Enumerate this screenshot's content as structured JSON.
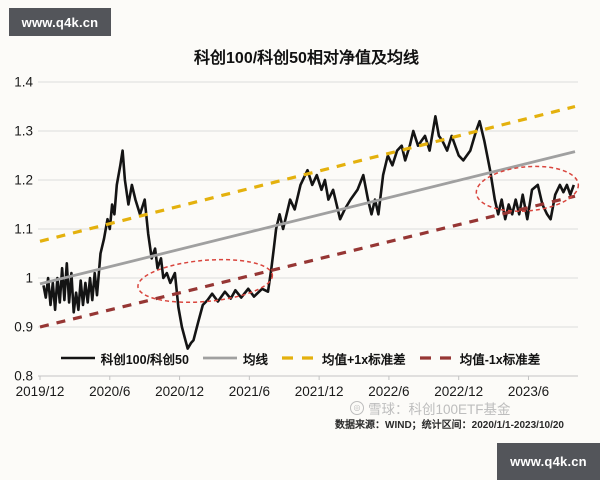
{
  "watermark_top": {
    "text": "www.q4k.cn"
  },
  "watermark_bottom": {
    "text": "www.q4k.cn"
  },
  "overlay_watermark": {
    "logo": "xueqiu-circle-logo",
    "text": "雪球：科创100ETF基金"
  },
  "caption": {
    "text": "数据来源：WIND；统计区间：2020/1/1-2023/10/20"
  },
  "chart_data": {
    "type": "line",
    "title": "科创100/科创50相对净值及均线",
    "xlabel": "",
    "ylabel": "",
    "x_axis": {
      "unit": "months since 2019/12",
      "range": [
        0,
        46
      ],
      "tick_positions": [
        0,
        6,
        12,
        18,
        24,
        30,
        36,
        42
      ],
      "tick_labels": [
        "2019/12",
        "2020/6",
        "2020/12",
        "2021/6",
        "2021/12",
        "2022/6",
        "2022/12",
        "2023/6"
      ]
    },
    "y_axis": {
      "range": [
        0.8,
        1.4
      ],
      "tick_step": 0.1,
      "tick_labels": [
        "0.8",
        "0.9",
        "1",
        "1.1",
        "1.2",
        "1.3",
        "1.4"
      ]
    },
    "grid": "horizontal",
    "legend_position": "bottom-inside",
    "series": [
      {
        "name": "科创100/科创50",
        "color": "#141414",
        "style": "solid",
        "width": 2.6,
        "points": [
          [
            0.3,
            0.985
          ],
          [
            0.5,
            0.96
          ],
          [
            0.7,
            1.0
          ],
          [
            0.9,
            0.945
          ],
          [
            1.1,
            0.99
          ],
          [
            1.3,
            0.935
          ],
          [
            1.5,
            1.0
          ],
          [
            1.7,
            0.95
          ],
          [
            1.9,
            1.02
          ],
          [
            2.1,
            0.955
          ],
          [
            2.3,
            1.03
          ],
          [
            2.5,
            0.95
          ],
          [
            2.7,
            1.01
          ],
          [
            2.9,
            0.93
          ],
          [
            3.1,
            0.97
          ],
          [
            3.3,
            0.935
          ],
          [
            3.5,
            0.995
          ],
          [
            3.7,
            0.945
          ],
          [
            3.9,
            0.99
          ],
          [
            4.1,
            0.95
          ],
          [
            4.3,
            1.0
          ],
          [
            4.5,
            0.955
          ],
          [
            4.7,
            1.01
          ],
          [
            4.9,
            0.965
          ],
          [
            5.2,
            1.05
          ],
          [
            5.5,
            1.08
          ],
          [
            5.8,
            1.12
          ],
          [
            6.0,
            1.1
          ],
          [
            6.2,
            1.15
          ],
          [
            6.4,
            1.13
          ],
          [
            6.6,
            1.19
          ],
          [
            6.9,
            1.23
          ],
          [
            7.1,
            1.26
          ],
          [
            7.3,
            1.2
          ],
          [
            7.6,
            1.15
          ],
          [
            7.9,
            1.19
          ],
          [
            8.2,
            1.16
          ],
          [
            8.6,
            1.13
          ],
          [
            9.0,
            1.16
          ],
          [
            9.3,
            1.09
          ],
          [
            9.6,
            1.04
          ],
          [
            9.9,
            1.06
          ],
          [
            10.1,
            1.02
          ],
          [
            10.4,
            1.04
          ],
          [
            10.6,
            1.0
          ],
          [
            10.9,
            1.01
          ],
          [
            11.2,
            0.99
          ],
          [
            11.6,
            1.01
          ],
          [
            11.9,
            0.94
          ],
          [
            12.2,
            0.9
          ],
          [
            12.5,
            0.873
          ],
          [
            12.7,
            0.856
          ],
          [
            13.0,
            0.868
          ],
          [
            13.2,
            0.873
          ],
          [
            13.6,
            0.91
          ],
          [
            14.0,
            0.945
          ],
          [
            14.4,
            0.955
          ],
          [
            14.8,
            0.968
          ],
          [
            15.3,
            0.952
          ],
          [
            15.9,
            0.972
          ],
          [
            16.4,
            0.958
          ],
          [
            16.8,
            0.975
          ],
          [
            17.3,
            0.96
          ],
          [
            17.9,
            0.978
          ],
          [
            18.4,
            0.962
          ],
          [
            19.1,
            0.978
          ],
          [
            19.6,
            0.972
          ],
          [
            19.9,
            1.02
          ],
          [
            20.1,
            1.06
          ],
          [
            20.3,
            1.1
          ],
          [
            20.6,
            1.13
          ],
          [
            20.9,
            1.1
          ],
          [
            21.5,
            1.16
          ],
          [
            21.9,
            1.14
          ],
          [
            22.4,
            1.19
          ],
          [
            23.0,
            1.22
          ],
          [
            23.4,
            1.19
          ],
          [
            23.8,
            1.21
          ],
          [
            24.2,
            1.18
          ],
          [
            24.5,
            1.2
          ],
          [
            24.8,
            1.16
          ],
          [
            25.2,
            1.18
          ],
          [
            25.8,
            1.12
          ],
          [
            26.2,
            1.14
          ],
          [
            26.7,
            1.16
          ],
          [
            27.3,
            1.18
          ],
          [
            27.8,
            1.21
          ],
          [
            28.2,
            1.16
          ],
          [
            28.5,
            1.13
          ],
          [
            28.8,
            1.16
          ],
          [
            29.1,
            1.13
          ],
          [
            29.5,
            1.21
          ],
          [
            29.9,
            1.25
          ],
          [
            30.3,
            1.23
          ],
          [
            30.7,
            1.26
          ],
          [
            31.1,
            1.27
          ],
          [
            31.4,
            1.24
          ],
          [
            31.8,
            1.27
          ],
          [
            32.1,
            1.3
          ],
          [
            32.5,
            1.27
          ],
          [
            32.8,
            1.28
          ],
          [
            33.1,
            1.29
          ],
          [
            33.5,
            1.26
          ],
          [
            34.0,
            1.33
          ],
          [
            34.3,
            1.29
          ],
          [
            34.6,
            1.28
          ],
          [
            35.0,
            1.26
          ],
          [
            35.4,
            1.29
          ],
          [
            36.0,
            1.25
          ],
          [
            36.4,
            1.24
          ],
          [
            37.0,
            1.26
          ],
          [
            37.5,
            1.3
          ],
          [
            37.8,
            1.32
          ],
          [
            38.2,
            1.28
          ],
          [
            38.7,
            1.22
          ],
          [
            39.1,
            1.16
          ],
          [
            39.4,
            1.13
          ],
          [
            39.7,
            1.16
          ],
          [
            40.0,
            1.12
          ],
          [
            40.3,
            1.15
          ],
          [
            40.6,
            1.13
          ],
          [
            40.9,
            1.16
          ],
          [
            41.2,
            1.13
          ],
          [
            41.5,
            1.17
          ],
          [
            41.9,
            1.12
          ],
          [
            42.3,
            1.18
          ],
          [
            42.8,
            1.19
          ],
          [
            43.2,
            1.15
          ],
          [
            43.6,
            1.13
          ],
          [
            43.9,
            1.12
          ],
          [
            44.3,
            1.17
          ],
          [
            44.7,
            1.19
          ],
          [
            45.0,
            1.175
          ],
          [
            45.3,
            1.19
          ],
          [
            45.6,
            1.17
          ],
          [
            45.9,
            1.19
          ]
        ]
      },
      {
        "name": "均线",
        "color": "#a0a0a0",
        "style": "solid",
        "width": 2.8,
        "points": [
          [
            0,
            0.988
          ],
          [
            46,
            1.258
          ]
        ]
      },
      {
        "name": "均值+1x标准差",
        "color": "#e4b10d",
        "style": "dashed",
        "width": 3.2,
        "points": [
          [
            0,
            1.075
          ],
          [
            46,
            1.35
          ]
        ]
      },
      {
        "name": "均值-1x标准差",
        "color": "#963634",
        "style": "dashed",
        "width": 3.2,
        "points": [
          [
            0,
            0.9
          ],
          [
            46,
            1.167
          ]
        ]
      }
    ],
    "annotations": [
      {
        "type": "ellipse",
        "color": "#d9453d",
        "center": [
          14.2,
          0.994
        ],
        "rx_months": 5.8,
        "ry_value": 0.042,
        "rotation_deg": -5
      },
      {
        "type": "ellipse",
        "color": "#d9453d",
        "center": [
          41.9,
          1.182
        ],
        "rx_months": 4.4,
        "ry_value": 0.045,
        "rotation_deg": -5
      }
    ]
  }
}
